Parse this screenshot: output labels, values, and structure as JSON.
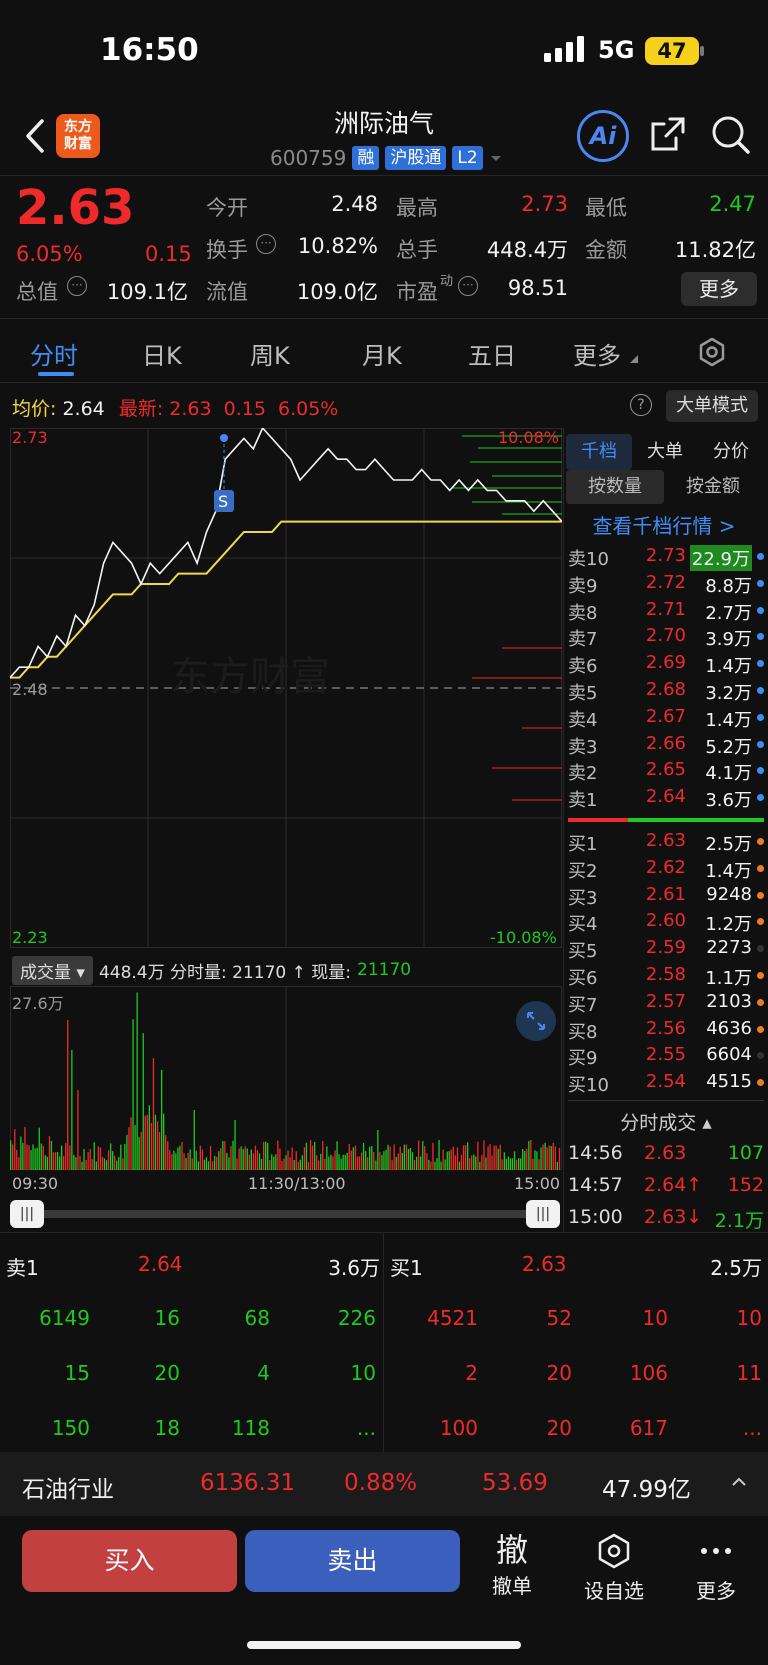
{
  "status": {
    "time": "16:50",
    "network": "5G",
    "battery": "47"
  },
  "header": {
    "logo_line1": "东方",
    "logo_line2": "财富",
    "name": "洲际油气",
    "code": "600759",
    "tags": [
      "融",
      "沪股通",
      "L2"
    ],
    "ai_label": "Ai"
  },
  "quote": {
    "price": "2.63",
    "pct": "6.05%",
    "change": "0.15",
    "fields": [
      {
        "label": "今开",
        "value": "2.48",
        "color": "white"
      },
      {
        "label": "最高",
        "value": "2.73",
        "color": "red"
      },
      {
        "label": "最低",
        "value": "2.47",
        "color": "green"
      },
      {
        "label": "换手",
        "value": "10.82%",
        "color": "white"
      },
      {
        "label": "总手",
        "value": "448.4万",
        "color": "white"
      },
      {
        "label": "金额",
        "value": "11.82亿",
        "color": "white"
      },
      {
        "label": "总值",
        "value": "109.1亿",
        "color": "white"
      },
      {
        "label": "流值",
        "value": "109.0亿",
        "color": "white"
      },
      {
        "label": "市盈",
        "value": "98.51",
        "color": "white"
      }
    ],
    "pe_superscript": "动",
    "more_label": "更多"
  },
  "tabs": [
    "分时",
    "日K",
    "周K",
    "月K",
    "五日",
    "更多"
  ],
  "chart": {
    "avg_label": "均价:",
    "avg_value": "2.64",
    "latest_label": "最新:",
    "latest_value": "2.63",
    "latest_change": "0.15",
    "latest_pct": "6.05%",
    "big_order_mode": "大单模式",
    "y_high": "2.73",
    "y_mid": "2.48",
    "y_low": "2.23",
    "pct_high": "10.08%",
    "pct_low": "-10.08%",
    "signal": "S",
    "watermark": "东方财富",
    "volume_selector": "成交量",
    "volume_info": "448.4万 分时量: 21170 ↑ 现量:",
    "volume_now": "21170",
    "volume_max": "27.6万",
    "time_start": "09:30",
    "time_mid": "11:30/13:00",
    "time_end": "15:00"
  },
  "chart_data": {
    "type": "line",
    "title": "",
    "x_range": [
      "09:30",
      "15:00"
    ],
    "ylim": [
      2.23,
      2.73
    ],
    "reference_price": 2.48,
    "series": [
      {
        "name": "最新",
        "values": [
          2.49,
          2.5,
          2.5,
          2.52,
          2.51,
          2.53,
          2.52,
          2.55,
          2.54,
          2.56,
          2.6,
          2.62,
          2.61,
          2.6,
          2.58,
          2.6,
          2.59,
          2.6,
          2.61,
          2.62,
          2.6,
          2.63,
          2.65,
          2.7,
          2.71,
          2.72,
          2.71,
          2.73,
          2.72,
          2.71,
          2.7,
          2.68,
          2.69,
          2.7,
          2.71,
          2.7,
          2.7,
          2.69,
          2.69,
          2.7,
          2.69,
          2.68,
          2.68,
          2.68,
          2.69,
          2.68,
          2.68,
          2.67,
          2.68,
          2.67,
          2.68,
          2.67,
          2.67,
          2.66,
          2.66,
          2.66,
          2.65,
          2.66,
          2.65,
          2.64
        ]
      },
      {
        "name": "均价",
        "values": [
          2.49,
          2.49,
          2.5,
          2.5,
          2.51,
          2.51,
          2.52,
          2.53,
          2.54,
          2.55,
          2.56,
          2.57,
          2.57,
          2.57,
          2.58,
          2.58,
          2.58,
          2.58,
          2.59,
          2.59,
          2.59,
          2.59,
          2.6,
          2.61,
          2.62,
          2.63,
          2.63,
          2.63,
          2.63,
          2.64,
          2.64,
          2.64,
          2.64,
          2.64,
          2.64,
          2.64,
          2.64,
          2.64,
          2.64,
          2.64,
          2.64,
          2.64,
          2.64,
          2.64,
          2.64,
          2.64,
          2.64,
          2.64,
          2.64,
          2.64,
          2.64,
          2.64,
          2.64,
          2.64,
          2.64,
          2.64,
          2.64,
          2.64,
          2.64,
          2.64
        ]
      }
    ]
  },
  "orderbook": {
    "tabs": [
      "千档",
      "大单",
      "分价"
    ],
    "toggle": [
      "按数量",
      "按金额"
    ],
    "view_link": "查看千档行情 >",
    "asks": [
      {
        "label": "卖10",
        "price": "2.73",
        "vol": "22.9万",
        "dot": "#3f8ef5",
        "hl": true
      },
      {
        "label": "卖9",
        "price": "2.72",
        "vol": "8.8万",
        "dot": "#3f8ef5"
      },
      {
        "label": "卖8",
        "price": "2.71",
        "vol": "2.7万",
        "dot": "#3f8ef5"
      },
      {
        "label": "卖7",
        "price": "2.70",
        "vol": "3.9万",
        "dot": "#3f8ef5"
      },
      {
        "label": "卖6",
        "price": "2.69",
        "vol": "1.4万",
        "dot": "#3f8ef5"
      },
      {
        "label": "卖5",
        "price": "2.68",
        "vol": "3.2万",
        "dot": "#3f8ef5"
      },
      {
        "label": "卖4",
        "price": "2.67",
        "vol": "1.4万",
        "dot": "#3f8ef5"
      },
      {
        "label": "卖3",
        "price": "2.66",
        "vol": "5.2万",
        "dot": "#3f8ef5"
      },
      {
        "label": "卖2",
        "price": "2.65",
        "vol": "4.1万",
        "dot": "#3f8ef5"
      },
      {
        "label": "卖1",
        "price": "2.64",
        "vol": "3.6万",
        "dot": "#3f8ef5"
      }
    ],
    "bids": [
      {
        "label": "买1",
        "price": "2.63",
        "vol": "2.5万",
        "dot": "#f07a2a"
      },
      {
        "label": "买2",
        "price": "2.62",
        "vol": "1.4万",
        "dot": "#f07a2a"
      },
      {
        "label": "买3",
        "price": "2.61",
        "vol": "9248",
        "dot": "#f07a2a"
      },
      {
        "label": "买4",
        "price": "2.60",
        "vol": "1.2万",
        "dot": "#f07a2a"
      },
      {
        "label": "买5",
        "price": "2.59",
        "vol": "2273",
        "dot": "#333333"
      },
      {
        "label": "买6",
        "price": "2.58",
        "vol": "1.1万",
        "dot": "#f07a2a"
      },
      {
        "label": "买7",
        "price": "2.57",
        "vol": "2103",
        "dot": "#f07a2a"
      },
      {
        "label": "买8",
        "price": "2.56",
        "vol": "4636",
        "dot": "#f07a2a"
      },
      {
        "label": "买9",
        "price": "2.55",
        "vol": "6604",
        "dot": "#333333"
      },
      {
        "label": "买10",
        "price": "2.54",
        "vol": "4515",
        "dot": "#f07a2a"
      }
    ],
    "trades_title": "分时成交",
    "trades": [
      {
        "time": "14:56",
        "price": "2.63",
        "vol": "107",
        "vcolor": "green"
      },
      {
        "time": "14:57",
        "price": "2.64↑",
        "vol": "152",
        "vcolor": "red"
      },
      {
        "time": "15:00",
        "price": "2.63↓",
        "vol": "2.1万",
        "vcolor": "green"
      }
    ]
  },
  "level1": {
    "ask_label": "卖1",
    "ask_price": "2.64",
    "ask_vol": "3.6万",
    "bid_label": "买1",
    "bid_price": "2.63",
    "bid_vol": "2.5万",
    "ask_queue": [
      [
        "6149",
        "16",
        "68",
        "226"
      ],
      [
        "15",
        "20",
        "4",
        "10"
      ],
      [
        "150",
        "18",
        "118",
        "..."
      ]
    ],
    "bid_queue": [
      [
        "4521",
        "52",
        "10",
        "10"
      ],
      [
        "2",
        "20",
        "106",
        "11"
      ],
      [
        "100",
        "20",
        "617",
        "..."
      ]
    ]
  },
  "industry": {
    "name": "石油行业",
    "index": "6136.31",
    "pct": "0.88%",
    "change": "53.69",
    "amount": "47.99亿"
  },
  "actions": {
    "buy": "买入",
    "sell": "卖出",
    "cancel_icon": "撤",
    "cancel": "撤单",
    "watch": "设自选",
    "more": "更多"
  }
}
